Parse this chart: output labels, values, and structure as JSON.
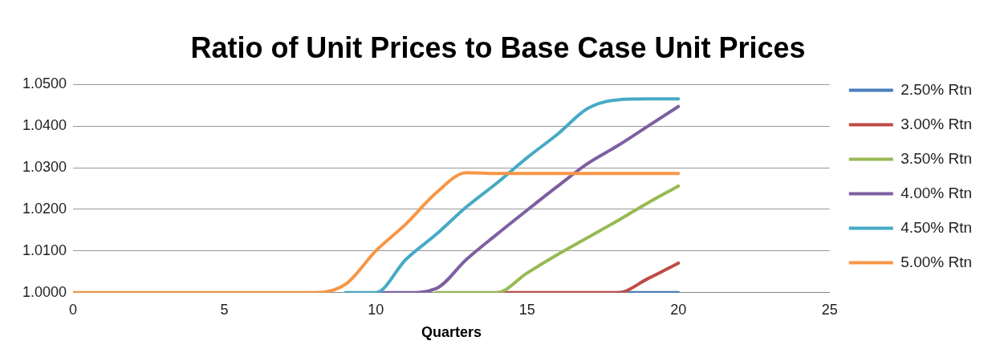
{
  "chart_data": {
    "type": "line",
    "title": "Ratio of Unit Prices to Base Case Unit Prices",
    "xlabel": "Quarters",
    "x": [
      0,
      1,
      2,
      3,
      4,
      5,
      6,
      7,
      8,
      9,
      10,
      11,
      12,
      13,
      14,
      15,
      16,
      17,
      18,
      19,
      20
    ],
    "xlim": [
      0,
      25
    ],
    "xticks": [
      0,
      5,
      10,
      15,
      20,
      25
    ],
    "ylim": [
      1,
      1.05
    ],
    "yticks": [
      {
        "value": 1,
        "label": "1.0000"
      },
      {
        "value": 1.01,
        "label": "1.0100"
      },
      {
        "value": 1.02,
        "label": "1.0200"
      },
      {
        "value": 1.03,
        "label": "1.0300"
      },
      {
        "value": 1.04,
        "label": "1.0400"
      },
      {
        "value": 1.05,
        "label": "1.0500"
      }
    ],
    "grid": "y",
    "legend": "right",
    "marker": "none",
    "line_style": "solid",
    "series": [
      {
        "name": "2.50% Rtn",
        "color": "#4a7ebb",
        "values": [
          null,
          null,
          null,
          null,
          null,
          null,
          null,
          null,
          null,
          null,
          null,
          null,
          null,
          null,
          null,
          null,
          null,
          null,
          1,
          1,
          1
        ]
      },
      {
        "name": "3.00% Rtn",
        "color": "#be4b48",
        "values": [
          null,
          null,
          null,
          null,
          null,
          null,
          null,
          null,
          null,
          null,
          null,
          null,
          null,
          null,
          1,
          1,
          1,
          1,
          1,
          1.0034,
          1.0071
        ]
      },
      {
        "name": "3.50% Rtn",
        "color": "#98b954",
        "values": [
          null,
          null,
          null,
          null,
          null,
          null,
          null,
          null,
          null,
          null,
          null,
          null,
          1,
          1,
          1,
          1.0047,
          1.0091,
          1.0132,
          1.0173,
          1.0216,
          1.0256
        ]
      },
      {
        "name": "4.00% Rtn",
        "color": "#7d60a0",
        "values": [
          null,
          null,
          null,
          null,
          null,
          null,
          null,
          null,
          null,
          null,
          1,
          1,
          1.001,
          1.008,
          1.014,
          1.0198,
          1.0255,
          1.031,
          1.0353,
          1.04,
          1.0447
        ]
      },
      {
        "name": "4.50% Rtn",
        "color": "#46aac5",
        "values": [
          null,
          null,
          null,
          null,
          null,
          null,
          null,
          null,
          null,
          1,
          1,
          1.008,
          1.014,
          1.0206,
          1.0263,
          1.0324,
          1.038,
          1.0442,
          1.0463,
          1.0465,
          1.0465
        ]
      },
      {
        "name": "5.00% Rtn",
        "color": "#f79646",
        "values": [
          1,
          1,
          1,
          1,
          1,
          1,
          1,
          1,
          1,
          1.002,
          1.01,
          1.0165,
          1.024,
          1.0288,
          1.0286,
          1.0286,
          1.0286,
          1.0286,
          1.0286,
          1.0286,
          1.0286
        ]
      }
    ]
  }
}
